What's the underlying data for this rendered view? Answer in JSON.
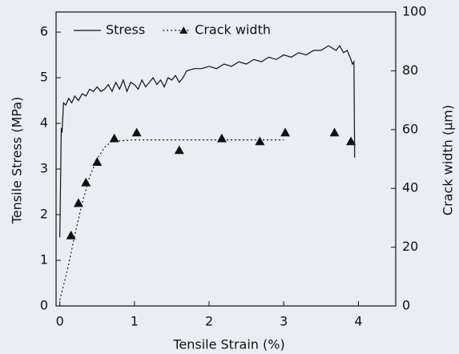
{
  "chart_data": {
    "type": "line",
    "xlabel": "Tensile Strain (%)",
    "ylabel": "Tensile Stress (MPa)",
    "y2label": "Crack width (μm)",
    "xlim": [
      -0.05,
      4.5
    ],
    "xticks": [
      0,
      1,
      2,
      3,
      4
    ],
    "ylim": [
      0,
      6.44
    ],
    "yticks": [
      0,
      1,
      2,
      3,
      4,
      5,
      6
    ],
    "y2lim": [
      0,
      100
    ],
    "y2ticks": [
      0,
      20,
      40,
      60,
      80,
      100
    ],
    "legend": "upper left",
    "series": [
      {
        "name": "Stress",
        "color": "#111111",
        "style": "solid",
        "x": [
          0,
          0.02,
          0.03,
          0.05,
          0.08,
          0.12,
          0.16,
          0.2,
          0.25,
          0.3,
          0.35,
          0.4,
          0.45,
          0.5,
          0.55,
          0.6,
          0.65,
          0.7,
          0.75,
          0.8,
          0.85,
          0.9,
          0.95,
          1.0,
          1.05,
          1.1,
          1.15,
          1.2,
          1.25,
          1.3,
          1.35,
          1.4,
          1.45,
          1.5,
          1.55,
          1.6,
          1.65,
          1.7,
          1.8,
          1.9,
          2.0,
          2.1,
          2.2,
          2.3,
          2.4,
          2.5,
          2.6,
          2.7,
          2.8,
          2.9,
          3.0,
          3.1,
          3.2,
          3.3,
          3.4,
          3.5,
          3.6,
          3.65,
          3.7,
          3.75,
          3.8,
          3.85,
          3.9,
          3.92,
          3.94,
          3.95
        ],
        "values": [
          1.5,
          3.9,
          3.8,
          4.45,
          4.4,
          4.55,
          4.45,
          4.6,
          4.5,
          4.65,
          4.6,
          4.75,
          4.7,
          4.8,
          4.7,
          4.75,
          4.85,
          4.7,
          4.9,
          4.75,
          4.95,
          4.7,
          4.9,
          4.85,
          4.75,
          4.95,
          4.8,
          4.9,
          5.0,
          4.85,
          4.95,
          4.8,
          5.0,
          4.95,
          5.05,
          4.9,
          5.0,
          5.15,
          5.2,
          5.2,
          5.25,
          5.2,
          5.3,
          5.25,
          5.35,
          5.3,
          5.4,
          5.35,
          5.45,
          5.4,
          5.5,
          5.45,
          5.55,
          5.5,
          5.6,
          5.6,
          5.7,
          5.65,
          5.6,
          5.7,
          5.55,
          5.6,
          5.4,
          5.3,
          5.35,
          3.25
        ]
      },
      {
        "name": "Crack width",
        "color": "#111111",
        "style": "dotted",
        "marker": "triangle",
        "axis": "y2",
        "x": [
          0.15,
          0.25,
          0.35,
          0.5,
          0.73,
          1.03,
          1.6,
          2.17,
          2.68,
          3.02,
          3.68,
          3.9
        ],
        "values": [
          24,
          35,
          42,
          49,
          57,
          59,
          53,
          57,
          56,
          59,
          59,
          56
        ],
        "fit_x": [
          0,
          0.1,
          0.2,
          0.3,
          0.4,
          0.5,
          0.6,
          0.7,
          1.0,
          3.0
        ],
        "fit_values": [
          2,
          12,
          24,
          35,
          44,
          50,
          54,
          56,
          56.5,
          56.5
        ]
      }
    ]
  }
}
